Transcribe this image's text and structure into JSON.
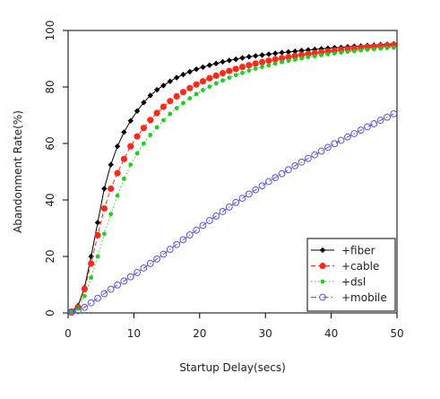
{
  "chart_data": {
    "type": "line",
    "title": "",
    "xlabel": "Startup Delay(secs)",
    "ylabel": "Abandonment Rate(%)",
    "xlim": [
      0,
      50
    ],
    "ylim": [
      0,
      100
    ],
    "x_ticks": [
      "0",
      "10",
      "20",
      "30",
      "40",
      "50"
    ],
    "y_ticks": [
      "0",
      "20",
      "40",
      "60",
      "80",
      "100"
    ],
    "grid": false,
    "legend_position": "bottom-right",
    "x": [
      0.5,
      1.5,
      2.5,
      3.5,
      4.5,
      5.5,
      6.5,
      7.5,
      8.5,
      9.5,
      10.5,
      11.5,
      12.5,
      13.5,
      14.5,
      15.5,
      16.5,
      17.5,
      18.5,
      19.5,
      20.5,
      21.5,
      22.5,
      23.5,
      24.5,
      25.5,
      26.5,
      27.5,
      28.5,
      29.5,
      30.5,
      31.5,
      32.5,
      33.5,
      34.5,
      35.5,
      36.5,
      37.5,
      38.5,
      39.5,
      40.5,
      41.5,
      42.5,
      43.5,
      44.5,
      45.5,
      46.5,
      47.5,
      48.5,
      49.5
    ],
    "series": [
      {
        "name": "+fiber",
        "color": "#000000",
        "marker": "diamond",
        "line_style": "solid",
        "values": [
          0.5,
          2.5,
          9.0,
          20.0,
          32.0,
          44.0,
          52.5,
          59.0,
          64.0,
          68.0,
          71.5,
          74.5,
          77.0,
          79.0,
          80.5,
          82.0,
          83.3,
          84.4,
          85.4,
          86.3,
          87.0,
          87.7,
          88.3,
          88.9,
          89.4,
          89.8,
          90.3,
          90.7,
          91.0,
          91.3,
          91.6,
          91.9,
          92.2,
          92.4,
          92.6,
          92.9,
          93.1,
          93.3,
          93.5,
          93.7,
          93.9,
          94.0,
          94.2,
          94.4,
          94.5,
          94.7,
          94.8,
          95.0,
          95.1,
          95.3
        ]
      },
      {
        "name": "+cable",
        "color": "#ff2a1a",
        "marker": "circle-filled",
        "line_style": "dashed",
        "values": [
          0.5,
          2.0,
          8.5,
          17.5,
          27.5,
          37.0,
          44.0,
          49.5,
          54.5,
          59.0,
          62.5,
          65.5,
          68.3,
          70.8,
          73.0,
          75.0,
          76.7,
          78.2,
          79.6,
          80.9,
          82.0,
          83.1,
          84.0,
          84.9,
          85.7,
          86.4,
          87.1,
          87.7,
          88.3,
          88.8,
          89.3,
          89.8,
          90.2,
          90.6,
          91.0,
          91.4,
          91.7,
          92.0,
          92.3,
          92.6,
          92.9,
          93.2,
          93.4,
          93.6,
          93.9,
          94.1,
          94.3,
          94.5,
          94.7,
          94.9
        ]
      },
      {
        "name": "+dsl",
        "color": "#22cc22",
        "marker": "dot",
        "line_style": "dotted",
        "values": [
          0.3,
          1.5,
          6.0,
          12.5,
          20.0,
          28.0,
          35.0,
          41.5,
          47.5,
          52.5,
          56.5,
          60.0,
          63.0,
          65.7,
          68.2,
          70.5,
          72.5,
          74.3,
          76.0,
          77.5,
          78.9,
          80.1,
          81.3,
          82.3,
          83.3,
          84.2,
          85.0,
          85.8,
          86.5,
          87.1,
          87.7,
          88.3,
          88.8,
          89.3,
          89.7,
          90.2,
          90.6,
          90.9,
          91.3,
          91.6,
          91.9,
          92.2,
          92.5,
          92.7,
          93.0,
          93.2,
          93.4,
          93.6,
          93.8,
          94.0
        ]
      },
      {
        "name": "+mobile",
        "color": "#5555dd",
        "marker": "circle-open",
        "line_style": "dashdot",
        "values": [
          0.2,
          0.8,
          2.0,
          3.6,
          5.2,
          6.8,
          8.4,
          9.9,
          11.3,
          12.8,
          14.3,
          15.9,
          17.5,
          19.1,
          20.8,
          22.5,
          24.2,
          25.9,
          27.6,
          29.3,
          31.0,
          32.7,
          34.3,
          35.9,
          37.5,
          39.1,
          40.6,
          42.1,
          43.6,
          45.0,
          46.5,
          47.9,
          49.3,
          50.7,
          52.1,
          53.4,
          54.7,
          56.0,
          57.3,
          58.6,
          59.9,
          61.1,
          62.3,
          63.5,
          64.7,
          65.9,
          67.0,
          68.2,
          69.3,
          70.5
        ]
      }
    ]
  }
}
